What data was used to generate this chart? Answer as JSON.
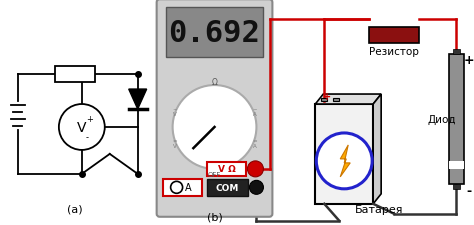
{
  "bg_color": "#ffffff",
  "label_a": "(a)",
  "label_b": "(b)",
  "display_text": "0.692",
  "resistor_label": "Резистор",
  "diode_label": "Диод",
  "battery_label": "Батарея",
  "volt_label": "V Ω",
  "amp_label": "A",
  "com_label": "COM",
  "off_label": "OFF",
  "omega_label": "Ω",
  "plus": "+",
  "minus": "-",
  "display_bg": "#888888",
  "display_text_color": "#111111",
  "meter_body": "#d0d0d0",
  "meter_border": "#888888",
  "red_color": "#cc0000",
  "resistor_fill": "#8b1010",
  "battery_fill": "#f0f0f0",
  "battery_border": "#333333",
  "battery_blue": "#2222cc",
  "lightning_color": "#ffaa00",
  "diode_fill": "#909090",
  "wire_red": "#cc0000",
  "wire_black": "#333333"
}
